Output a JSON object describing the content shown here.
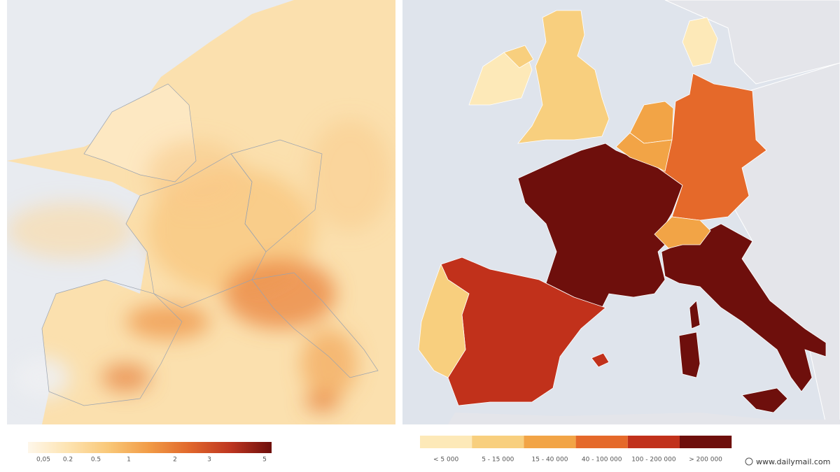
{
  "left_map": {
    "legend": {
      "gradient_colors": [
        "#fef7ea",
        "#fde3b0",
        "#f9c777",
        "#f19a45",
        "#e0662b",
        "#bd3520",
        "#6e0f0c"
      ],
      "ticks": [
        "0,05",
        "0.2",
        "0.5",
        "1",
        "2",
        "3",
        "5"
      ]
    }
  },
  "right_map": {
    "legend": {
      "classes": [
        {
          "label": "< 5 000",
          "color": "#fde9b8"
        },
        {
          "label": "5 - 15 000",
          "color": "#f8cf7e"
        },
        {
          "label": "15 - 40 000",
          "color": "#f2a446"
        },
        {
          "label": "40 - 100 000",
          "color": "#e5692a"
        },
        {
          "label": "100 - 200 000",
          "color": "#c1311b"
        },
        {
          "label": "> 200 000",
          "color": "#6e0f0c"
        }
      ]
    }
  },
  "credit": "www.dailymail.com"
}
